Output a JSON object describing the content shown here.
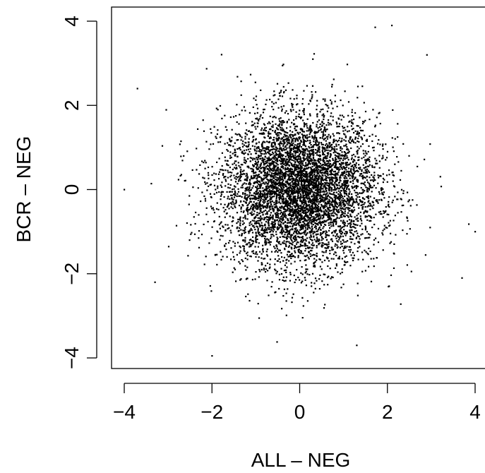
{
  "chart_data": {
    "type": "scatter",
    "title": "",
    "xlabel": "ALL – NEG",
    "ylabel": "BCR – NEG",
    "xlim": [
      -4.2,
      4.3
    ],
    "ylim": [
      -4.2,
      4.2
    ],
    "x_ticks": [
      -4,
      -2,
      0,
      2,
      4
    ],
    "x_tick_labels": [
      "−4",
      "−2",
      "0",
      "2",
      "4"
    ],
    "y_ticks": [
      -4,
      -2,
      0,
      2,
      4
    ],
    "y_tick_labels": [
      "−4",
      "−2",
      "0",
      "2",
      "4"
    ],
    "grid": false,
    "legend": "none",
    "marker_color": "#000000",
    "n_points": 6000,
    "point_distribution": "approximately bivariate normal, mean (0, 0), standard deviation about 0.9 on each axis, no visible correlation",
    "notable_points": [
      {
        "x": -4.0,
        "y": 0.0
      },
      {
        "x": -3.7,
        "y": 2.4
      },
      {
        "x": -3.3,
        "y": -2.2
      },
      {
        "x": -2.0,
        "y": -3.95
      },
      {
        "x": 0.3,
        "y": 3.1
      },
      {
        "x": 1.3,
        "y": -3.7
      },
      {
        "x": 2.1,
        "y": 3.9
      },
      {
        "x": 2.9,
        "y": 3.2
      },
      {
        "x": 3.7,
        "y": -2.1
      },
      {
        "x": 4.0,
        "y": -1.0
      }
    ]
  }
}
